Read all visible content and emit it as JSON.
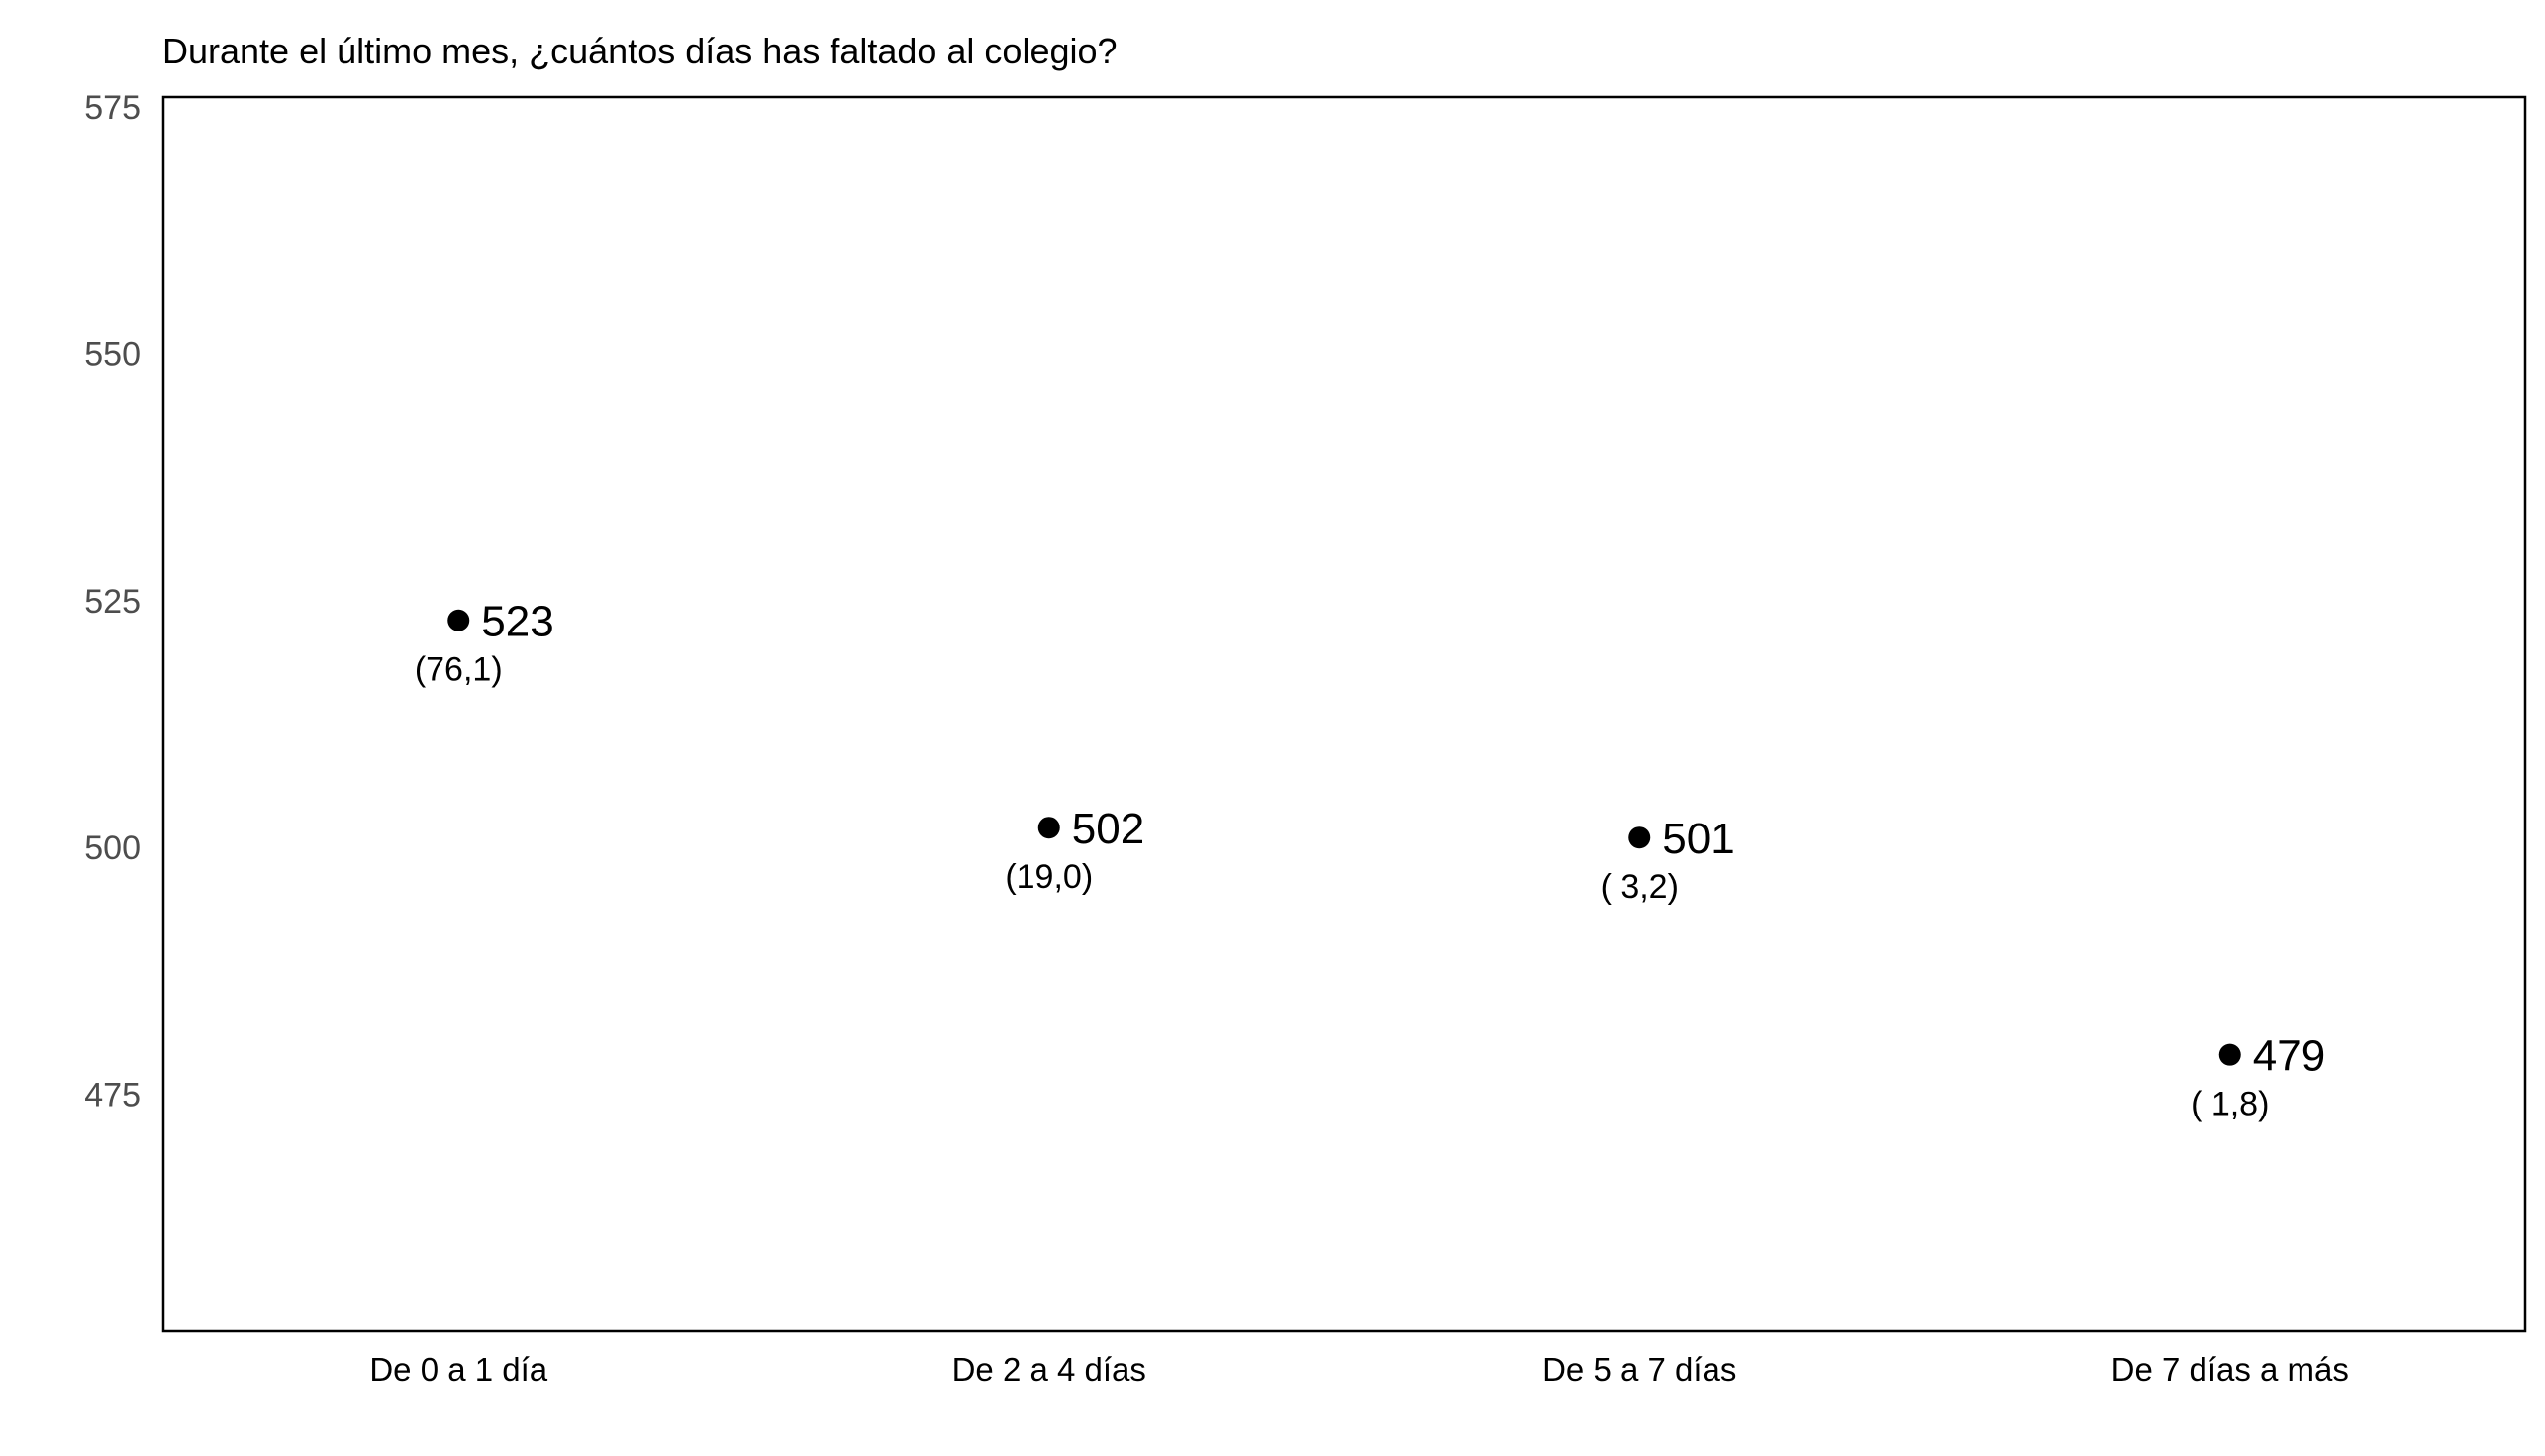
{
  "chart_data": {
    "type": "scatter",
    "title": "Durante el último mes, ¿cuántos días has faltado al colegio?",
    "xlabel": "",
    "ylabel": "",
    "categories": [
      "De 0 a 1 día",
      "De 2 a 4 días",
      "De 5 a 7 días",
      "De 7 días a más"
    ],
    "values": [
      523,
      502,
      501,
      479
    ],
    "value_labels": [
      "523",
      "502",
      "501",
      "479"
    ],
    "percent_labels": [
      "(76,1)",
      "(19,0)",
      "( 3,2)",
      "( 1,8)"
    ],
    "ylim": [
      451,
      576
    ],
    "yticks": [
      475,
      500,
      525,
      550,
      575
    ],
    "ytick_labels": [
      "475",
      "500",
      "525",
      "550",
      "575"
    ],
    "grid": false,
    "legend": "none",
    "colors": {
      "point": "#000000",
      "frame": "#000000",
      "ytick_text": "#4d4d4d"
    }
  }
}
